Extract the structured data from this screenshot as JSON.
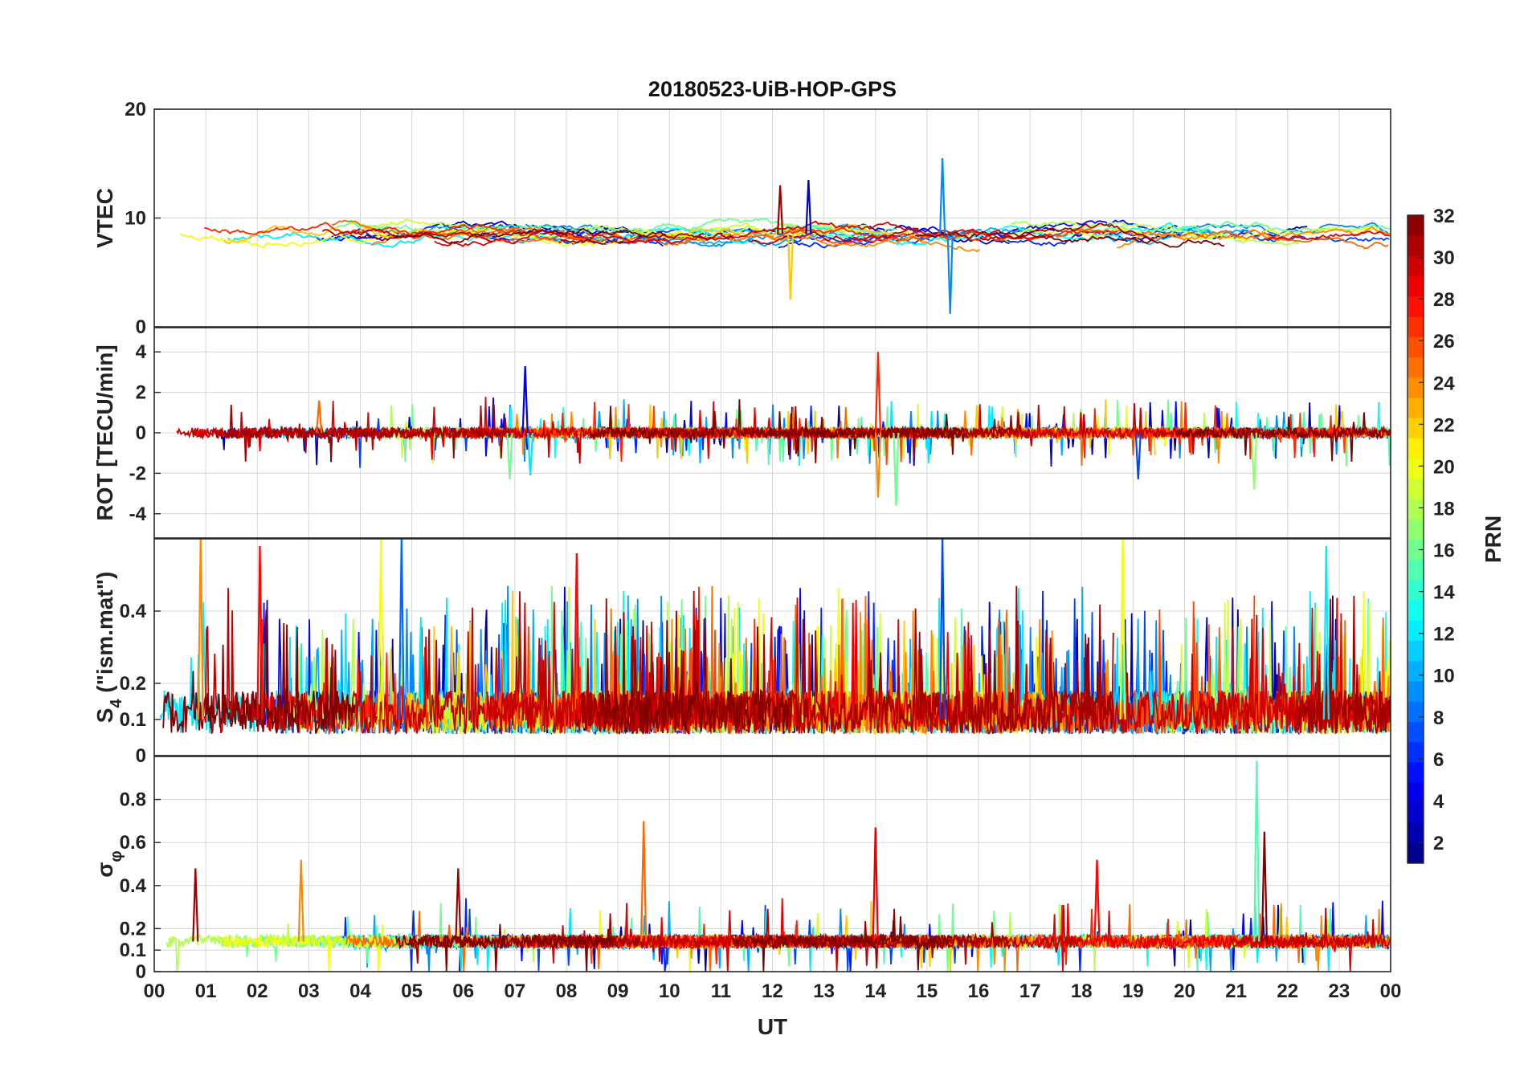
{
  "chart_data": {
    "type": "line",
    "title": "20180523-UiB-HOP-GPS",
    "xlabel": "UT",
    "x_tick_labels": [
      "00",
      "01",
      "02",
      "03",
      "04",
      "05",
      "06",
      "07",
      "08",
      "09",
      "10",
      "11",
      "12",
      "13",
      "14",
      "15",
      "16",
      "17",
      "18",
      "19",
      "20",
      "21",
      "22",
      "23",
      "00"
    ],
    "xlim_hours": [
      0,
      24
    ],
    "grid": "on",
    "colorbar": {
      "label": "PRN",
      "range": [
        1,
        32
      ],
      "ticks": [
        "2",
        "4",
        "6",
        "8",
        "10",
        "12",
        "14",
        "16",
        "18",
        "20",
        "22",
        "24",
        "26",
        "28",
        "30",
        "32"
      ],
      "colormap": "jet",
      "colors": [
        "#00008f",
        "#0000ff",
        "#0080ff",
        "#00ffff",
        "#80ff80",
        "#ffff00",
        "#ff8000",
        "#ff0000",
        "#800000"
      ]
    },
    "panels": [
      {
        "id": "vtec",
        "ylabel": "VTEC",
        "ylim": [
          0,
          20
        ],
        "y_tick_labels": [
          "0",
          "10",
          "20"
        ],
        "baseline": 8.5,
        "noise": 1.2,
        "spike_rate": 0.0,
        "style": "smooth",
        "events": [
          {
            "hour": 12.35,
            "value": 2.5,
            "prn": 22
          },
          {
            "hour": 15.45,
            "value": 1.2,
            "prn": 9
          },
          {
            "hour": 15.3,
            "value": 15.5,
            "prn": 9
          },
          {
            "hour": 12.7,
            "value": 13.5,
            "prn": 3
          },
          {
            "hour": 12.15,
            "value": 13.0,
            "prn": 31
          }
        ]
      },
      {
        "id": "rot",
        "ylabel": "ROT [TECU/min]",
        "ylim": [
          -5.2,
          5.2
        ],
        "y_tick_labels": [
          "-4",
          "-2",
          "0",
          "2",
          "4"
        ],
        "baseline": 0.0,
        "noise": 0.25,
        "spike_rate": 0.03,
        "spike_scale": 1.6,
        "style": "noise",
        "events": [
          {
            "hour": 14.05,
            "value": 4.0,
            "prn": 27
          },
          {
            "hour": 14.05,
            "value": -3.2,
            "prn": 24
          },
          {
            "hour": 14.4,
            "value": -3.6,
            "prn": 16
          },
          {
            "hour": 7.2,
            "value": 3.3,
            "prn": 4
          },
          {
            "hour": 7.3,
            "value": -2.1,
            "prn": 12
          },
          {
            "hour": 6.9,
            "value": -2.3,
            "prn": 16
          },
          {
            "hour": 19.1,
            "value": -2.3,
            "prn": 7
          },
          {
            "hour": 21.35,
            "value": -2.8,
            "prn": 17
          },
          {
            "hour": 3.2,
            "value": 1.6,
            "prn": 25
          }
        ]
      },
      {
        "id": "s4",
        "ylabel": "S4 (\"ism.mat\")",
        "ylabel_main": "S",
        "ylabel_sub": "4",
        "ylabel_rest": " (\"ism.mat\")",
        "ylim": [
          0,
          0.6
        ],
        "y_tick_labels": [
          "0",
          "0.1",
          "0.2",
          "0.4"
        ],
        "baseline": 0.1,
        "noise": 0.06,
        "spike_rate": 0.06,
        "spike_scale": 0.3,
        "style": "burst",
        "events": [
          {
            "hour": 0.9,
            "value": 0.6,
            "prn": 24
          },
          {
            "hour": 2.05,
            "value": 0.58,
            "prn": 28
          },
          {
            "hour": 4.4,
            "value": 0.6,
            "prn": 20
          },
          {
            "hour": 4.8,
            "value": 0.6,
            "prn": 8
          },
          {
            "hour": 8.2,
            "value": 0.56,
            "prn": 28
          },
          {
            "hour": 15.3,
            "value": 0.6,
            "prn": 7
          },
          {
            "hour": 18.8,
            "value": 0.6,
            "prn": 20
          },
          {
            "hour": 22.75,
            "value": 0.58,
            "prn": 12
          }
        ]
      },
      {
        "id": "sigma_phi",
        "ylabel": "σφ",
        "ylabel_main": "σ",
        "ylabel_sub": "φ",
        "ylim": [
          0,
          1.0
        ],
        "y_tick_labels": [
          "0",
          "0.1",
          "0.2",
          "0.4",
          "0.6",
          "0.8"
        ],
        "baseline": 0.14,
        "noise": 0.03,
        "spike_rate": 0.02,
        "spike_scale": 0.18,
        "style": "noise",
        "events": [
          {
            "hour": 21.4,
            "value": 0.98,
            "prn": 15
          },
          {
            "hour": 21.55,
            "value": 0.65,
            "prn": 32
          },
          {
            "hour": 9.5,
            "value": 0.7,
            "prn": 25
          },
          {
            "hour": 14.0,
            "value": 0.67,
            "prn": 29
          },
          {
            "hour": 18.3,
            "value": 0.52,
            "prn": 28
          },
          {
            "hour": 2.85,
            "value": 0.52,
            "prn": 24
          },
          {
            "hour": 0.8,
            "value": 0.48,
            "prn": 31
          },
          {
            "hour": 5.9,
            "value": 0.48,
            "prn": 31
          }
        ]
      }
    ]
  }
}
